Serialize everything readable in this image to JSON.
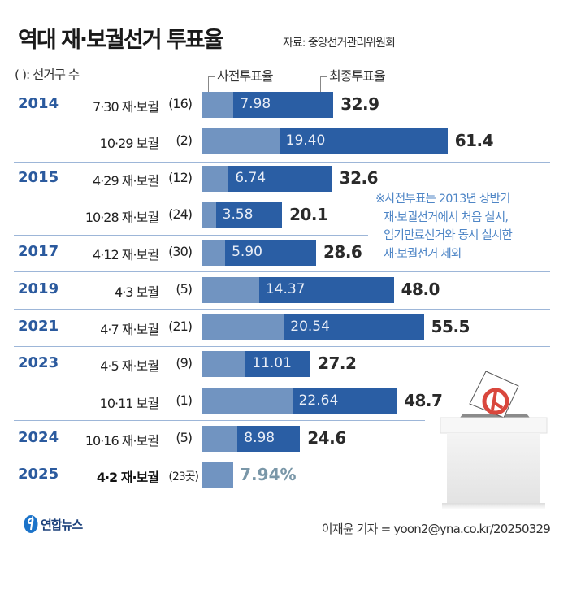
{
  "header": {
    "title": "역대 재·보궐선거 투표율",
    "source": "자료: 중앙선거관리위원회",
    "count_note": "( ): 선거구 수"
  },
  "legend": {
    "early": "사전투표율",
    "final": "최종투표율"
  },
  "note": {
    "lines": [
      "※사전투표는 2013년 상반기",
      "재·보궐선거에서 처음 실시,",
      "임기만료선거와 동시 실시한",
      "재·보궐선거 제외"
    ]
  },
  "colors": {
    "early_bar": "#7194c1",
    "final_bar": "#2a5ea4",
    "year_text": "#2b5a9e",
    "note_text": "#4f86c6",
    "latest_text": "#7a97a8"
  },
  "chart_data": {
    "type": "bar",
    "orientation": "horizontal",
    "title": "역대 재·보궐선거 투표율",
    "unit": "%",
    "series": [
      {
        "name": "사전투표율",
        "values": [
          7.98,
          19.4,
          6.74,
          3.58,
          5.9,
          14.37,
          20.54,
          11.01,
          22.64,
          8.98,
          7.94
        ]
      },
      {
        "name": "최종투표율",
        "values": [
          32.9,
          61.4,
          32.6,
          20.1,
          28.6,
          48.0,
          55.5,
          27.2,
          48.7,
          24.6,
          null
        ]
      }
    ],
    "rows": [
      {
        "year": "2014",
        "election": "7·30 재·보궐",
        "count": "(16)",
        "early": 7.98,
        "early_label": "7.98",
        "final": 32.9,
        "final_label": "32.9"
      },
      {
        "year": "",
        "election": "10·29 보궐",
        "count": "(2)",
        "early": 19.4,
        "early_label": "19.40",
        "final": 61.4,
        "final_label": "61.4"
      },
      {
        "year": "2015",
        "election": "4·29 재·보궐",
        "count": "(12)",
        "early": 6.74,
        "early_label": "6.74",
        "final": 32.6,
        "final_label": "32.6"
      },
      {
        "year": "",
        "election": "10·28 재·보궐",
        "count": "(24)",
        "early": 3.58,
        "early_label": "3.58",
        "final": 20.1,
        "final_label": "20.1"
      },
      {
        "year": "2017",
        "election": "4·12 재·보궐",
        "count": "(30)",
        "early": 5.9,
        "early_label": "5.90",
        "final": 28.6,
        "final_label": "28.6"
      },
      {
        "year": "2019",
        "election": "4·3 보궐",
        "count": "(5)",
        "early": 14.37,
        "early_label": "14.37",
        "final": 48.0,
        "final_label": "48.0"
      },
      {
        "year": "2021",
        "election": "4·7 재·보궐",
        "count": "(21)",
        "early": 20.54,
        "early_label": "20.54",
        "final": 55.5,
        "final_label": "55.5"
      },
      {
        "year": "2023",
        "election": "4·5 재·보궐",
        "count": "(9)",
        "early": 11.01,
        "early_label": "11.01",
        "final": 27.2,
        "final_label": "27.2"
      },
      {
        "year": "",
        "election": "10·11 보궐",
        "count": "(1)",
        "early": 22.64,
        "early_label": "22.64",
        "final": 48.7,
        "final_label": "48.7"
      },
      {
        "year": "2024",
        "election": "10·16 재·보궐",
        "count": "(5)",
        "early": 8.98,
        "early_label": "8.98",
        "final": 24.6,
        "final_label": "24.6"
      },
      {
        "year": "2025",
        "election": "4·2 재·보궐",
        "count": "(23곳)",
        "early": 7.94,
        "early_label": "7.94%",
        "final": null,
        "final_label": ""
      }
    ]
  },
  "footer": {
    "logo_text": "연합뉴스",
    "credit": "이재윤 기자 = yoon2@yna.co.kr/20250329"
  }
}
